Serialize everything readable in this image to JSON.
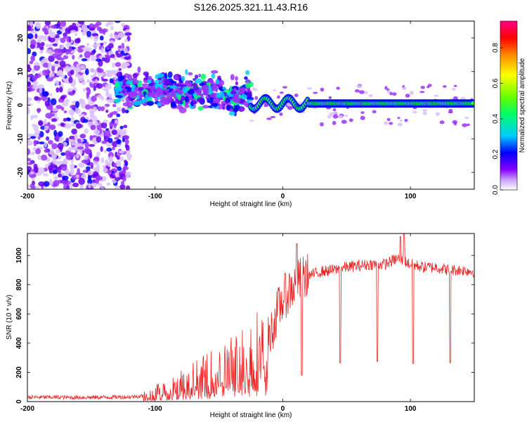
{
  "title": "S126.2025.321.11.43.R16",
  "chart_data": [
    {
      "type": "heatmap",
      "xlabel": "Height of straight line (km)",
      "ylabel": "Frequency (Hz)",
      "xlim": [
        -200,
        150
      ],
      "ylim": [
        -25,
        25
      ],
      "xticks": [
        -200,
        -100,
        0,
        100
      ],
      "yticks": [
        -20,
        -10,
        0,
        10,
        20
      ],
      "colorbar": {
        "label": "Normalized spectral amplitude",
        "range": [
          0,
          0.95
        ],
        "ticks": [
          0.0,
          0.2,
          0.4,
          0.6,
          0.8
        ],
        "colors": [
          "#ffffff",
          "#8800ff",
          "#0000ff",
          "#00ffff",
          "#00ff00",
          "#ffff00",
          "#ff8800",
          "#ff0000",
          "#ff0088"
        ]
      },
      "carrier_line": {
        "x_start": -25,
        "x_end": 150,
        "frequency": 0.5,
        "peak_amplitude": 0.9
      },
      "noise_region": {
        "x_start": -200,
        "x_end": -130,
        "frequency_spread": 25
      },
      "transition_region": {
        "x_start": -130,
        "x_end": -25
      }
    },
    {
      "type": "line",
      "xlabel": "Height of straight line (km)",
      "ylabel": "SNR (10 * v/v)",
      "xlim": [
        -200,
        150
      ],
      "ylim": [
        0,
        1150
      ],
      "xticks": [
        -200,
        -100,
        0,
        100
      ],
      "yticks": [
        0,
        200,
        400,
        600,
        800,
        1000
      ],
      "color": "#ee2222",
      "series": [
        {
          "name": "",
          "x": [
            -200,
            -180,
            -160,
            -140,
            -120,
            -110,
            -100,
            -90,
            -80,
            -70,
            -60,
            -50,
            -40,
            -30,
            -20,
            -15,
            -12,
            -8,
            -5,
            0,
            5,
            10,
            15,
            20,
            30,
            40,
            50,
            60,
            70,
            80,
            90,
            95,
            100,
            110,
            120,
            130,
            140,
            150
          ],
          "y": [
            30,
            30,
            28,
            30,
            32,
            40,
            60,
            90,
            120,
            150,
            170,
            200,
            240,
            280,
            340,
            350,
            420,
            500,
            600,
            700,
            760,
            800,
            840,
            860,
            890,
            900,
            920,
            930,
            940,
            940,
            980,
            960,
            940,
            920,
            920,
            900,
            900,
            890
          ]
        }
      ],
      "dropouts": [
        {
          "x": 15,
          "y": 180
        },
        {
          "x": 45,
          "y": 265
        },
        {
          "x": 74,
          "y": 275
        },
        {
          "x": 102,
          "y": 260
        },
        {
          "x": 131,
          "y": 265
        }
      ],
      "spikes": [
        {
          "x": 11,
          "y": 1080
        },
        {
          "x": 92,
          "y": 1130
        },
        {
          "x": 95,
          "y": 1150
        }
      ]
    }
  ]
}
